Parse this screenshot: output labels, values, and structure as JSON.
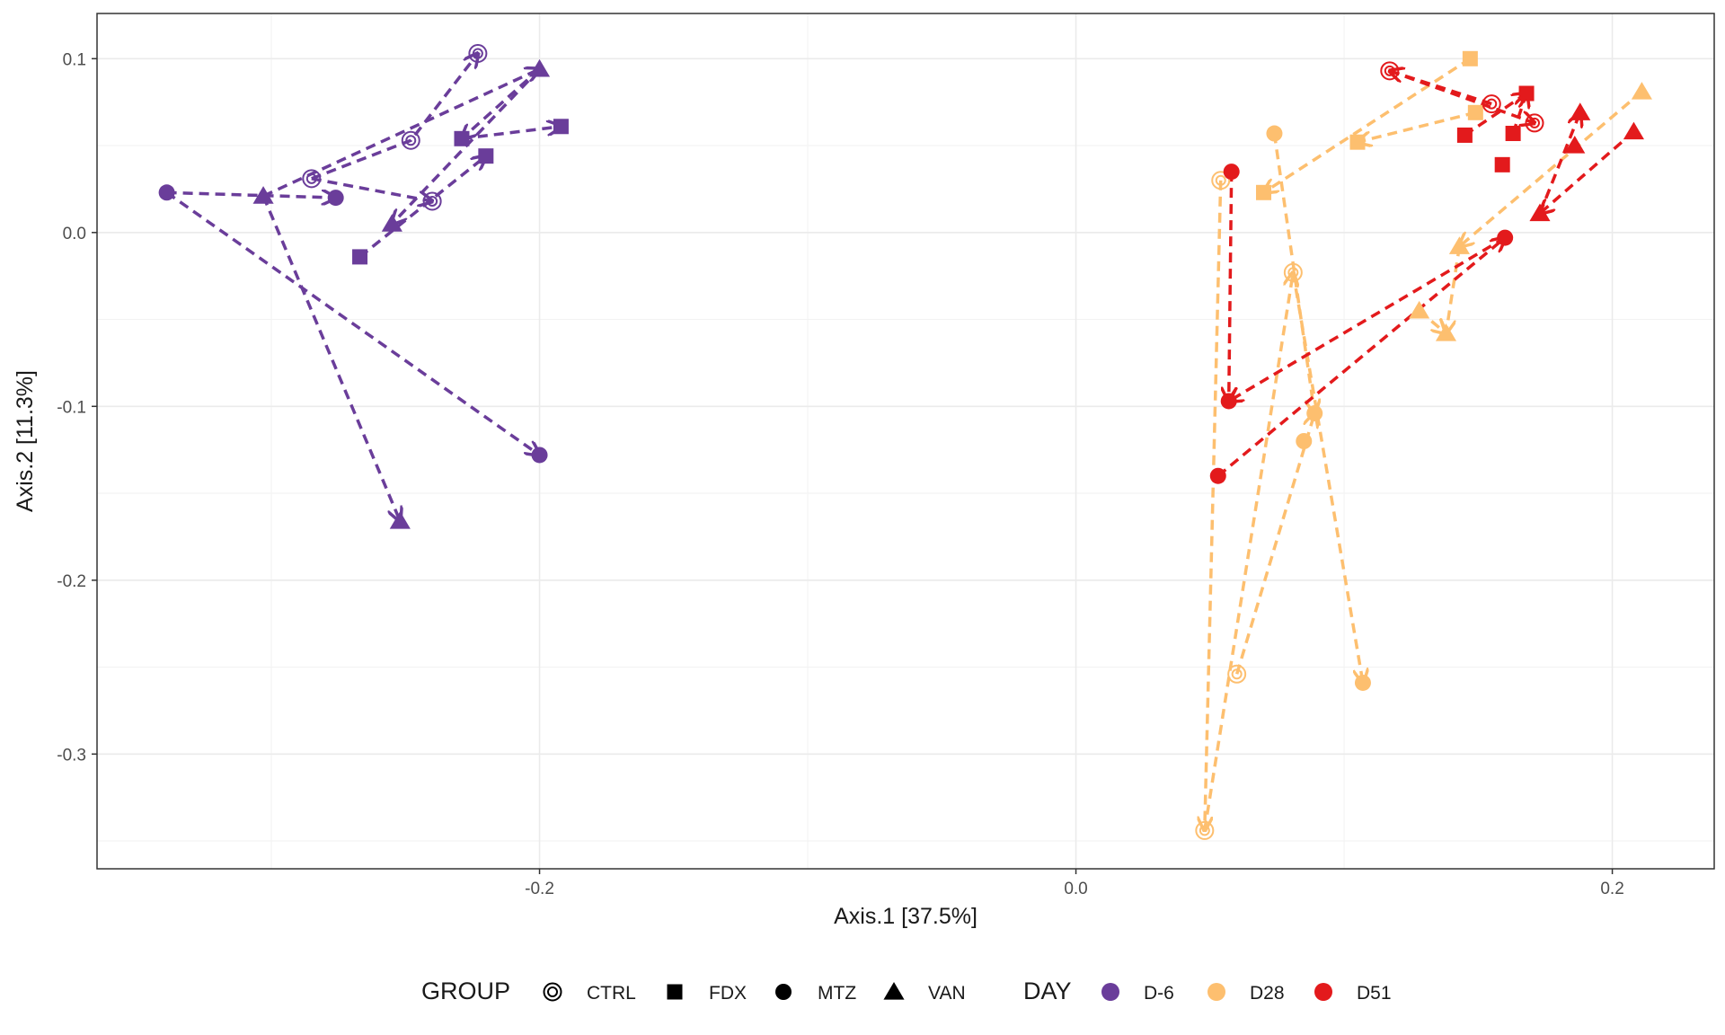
{
  "chart_data": {
    "type": "scatter",
    "title": "",
    "xlabel": "Axis.1   [37.5%]",
    "ylabel": "Axis.2   [11.3%]",
    "xlim": [
      -0.365,
      0.238
    ],
    "ylim": [
      -0.366,
      0.126
    ],
    "xticks": [
      -0.2,
      0.0,
      0.2
    ],
    "xtick_labels": [
      "-0.2",
      "0.0",
      "0.2"
    ],
    "yticks": [
      0.1,
      0.0,
      -0.1,
      -0.2,
      -0.3
    ],
    "ytick_labels": [
      "0.1",
      "0.0",
      "-0.1",
      "-0.2",
      "-0.3"
    ],
    "grid": true,
    "legend_position": "bottom",
    "legend": {
      "group_title": "GROUP",
      "group_items": [
        {
          "label": "CTRL",
          "shape": "ctrl"
        },
        {
          "label": "FDX",
          "shape": "fdx"
        },
        {
          "label": "MTZ",
          "shape": "mtz"
        },
        {
          "label": "VAN",
          "shape": "van"
        }
      ],
      "day_title": "DAY",
      "day_items": [
        {
          "label": "D-6",
          "color": "#6a3d9a"
        },
        {
          "label": "D28",
          "color": "#fdbf6f"
        },
        {
          "label": "D51",
          "color": "#e31a1c"
        }
      ]
    },
    "series": [
      {
        "name": "D-6",
        "color": "#6a3d9a",
        "points": [
          {
            "group": "CTRL",
            "x": -0.223,
            "y": 0.103
          },
          {
            "group": "CTRL",
            "x": -0.248,
            "y": 0.053
          },
          {
            "group": "CTRL",
            "x": -0.285,
            "y": 0.031
          },
          {
            "group": "CTRL",
            "x": -0.24,
            "y": 0.018
          },
          {
            "group": "FDX",
            "x": -0.192,
            "y": 0.061
          },
          {
            "group": "FDX",
            "x": -0.229,
            "y": 0.054
          },
          {
            "group": "FDX",
            "x": -0.22,
            "y": 0.044
          },
          {
            "group": "FDX",
            "x": -0.267,
            "y": -0.014
          },
          {
            "group": "MTZ",
            "x": -0.339,
            "y": 0.023
          },
          {
            "group": "MTZ",
            "x": -0.276,
            "y": 0.02
          },
          {
            "group": "MTZ",
            "x": -0.2,
            "y": -0.128
          },
          {
            "group": "VAN",
            "x": -0.2,
            "y": 0.094
          },
          {
            "group": "VAN",
            "x": -0.303,
            "y": 0.021
          },
          {
            "group": "VAN",
            "x": -0.255,
            "y": 0.005
          },
          {
            "group": "VAN",
            "x": -0.252,
            "y": -0.166
          }
        ]
      },
      {
        "name": "D28",
        "color": "#fdbf6f",
        "points": [
          {
            "group": "CTRL",
            "x": 0.054,
            "y": 0.03
          },
          {
            "group": "CTRL",
            "x": 0.081,
            "y": -0.023
          },
          {
            "group": "CTRL",
            "x": 0.06,
            "y": -0.254
          },
          {
            "group": "CTRL",
            "x": 0.048,
            "y": -0.344
          },
          {
            "group": "FDX",
            "x": 0.147,
            "y": 0.1
          },
          {
            "group": "FDX",
            "x": 0.149,
            "y": 0.069
          },
          {
            "group": "FDX",
            "x": 0.105,
            "y": 0.052
          },
          {
            "group": "FDX",
            "x": 0.07,
            "y": 0.023
          },
          {
            "group": "MTZ",
            "x": 0.074,
            "y": 0.057
          },
          {
            "group": "MTZ",
            "x": 0.089,
            "y": -0.104
          },
          {
            "group": "MTZ",
            "x": 0.085,
            "y": -0.12
          },
          {
            "group": "MTZ",
            "x": 0.107,
            "y": -0.259
          },
          {
            "group": "VAN",
            "x": 0.211,
            "y": 0.081
          },
          {
            "group": "VAN",
            "x": 0.143,
            "y": -0.008
          },
          {
            "group": "VAN",
            "x": 0.128,
            "y": -0.045
          },
          {
            "group": "VAN",
            "x": 0.138,
            "y": -0.058
          }
        ]
      },
      {
        "name": "D51",
        "color": "#e31a1c",
        "points": [
          {
            "group": "CTRL",
            "x": 0.117,
            "y": 0.093
          },
          {
            "group": "CTRL",
            "x": 0.155,
            "y": 0.074
          },
          {
            "group": "CTRL",
            "x": 0.171,
            "y": 0.063
          },
          {
            "group": "FDX",
            "x": 0.168,
            "y": 0.08
          },
          {
            "group": "FDX",
            "x": 0.145,
            "y": 0.056
          },
          {
            "group": "FDX",
            "x": 0.163,
            "y": 0.057
          },
          {
            "group": "FDX",
            "x": 0.159,
            "y": 0.039
          },
          {
            "group": "MTZ",
            "x": 0.058,
            "y": 0.035
          },
          {
            "group": "MTZ",
            "x": 0.16,
            "y": -0.003
          },
          {
            "group": "MTZ",
            "x": 0.057,
            "y": -0.097
          },
          {
            "group": "MTZ",
            "x": 0.053,
            "y": -0.14
          },
          {
            "group": "VAN",
            "x": 0.188,
            "y": 0.069
          },
          {
            "group": "VAN",
            "x": 0.186,
            "y": 0.05
          },
          {
            "group": "VAN",
            "x": 0.208,
            "y": 0.058
          },
          {
            "group": "VAN",
            "x": 0.173,
            "y": 0.011
          }
        ]
      }
    ],
    "trajectories": [
      {
        "color": "#6a3d9a",
        "path": [
          [
            -0.285,
            0.031
          ],
          [
            -0.248,
            0.053
          ],
          [
            -0.223,
            0.103
          ]
        ]
      },
      {
        "color": "#6a3d9a",
        "path": [
          [
            -0.285,
            0.031
          ],
          [
            -0.24,
            0.018
          ]
        ]
      },
      {
        "color": "#6a3d9a",
        "path": [
          [
            -0.267,
            -0.014
          ],
          [
            -0.22,
            0.044
          ]
        ]
      },
      {
        "color": "#6a3d9a",
        "path": [
          [
            -0.229,
            0.054
          ],
          [
            -0.192,
            0.061
          ]
        ]
      },
      {
        "color": "#6a3d9a",
        "path": [
          [
            -0.339,
            0.023
          ],
          [
            -0.276,
            0.02
          ]
        ]
      },
      {
        "color": "#6a3d9a",
        "path": [
          [
            -0.339,
            0.023
          ],
          [
            -0.2,
            -0.128
          ]
        ]
      },
      {
        "color": "#6a3d9a",
        "path": [
          [
            -0.303,
            0.021
          ],
          [
            -0.252,
            -0.166
          ]
        ]
      },
      {
        "color": "#6a3d9a",
        "path": [
          [
            -0.303,
            0.021
          ],
          [
            -0.2,
            0.094
          ]
        ]
      },
      {
        "color": "#6a3d9a",
        "path": [
          [
            -0.2,
            0.094
          ],
          [
            -0.229,
            0.054
          ]
        ]
      },
      {
        "color": "#6a3d9a",
        "path": [
          [
            -0.2,
            0.094
          ],
          [
            -0.255,
            0.005
          ]
        ]
      },
      {
        "color": "#fdbf6f",
        "path": [
          [
            0.054,
            0.03
          ],
          [
            0.048,
            -0.344
          ]
        ]
      },
      {
        "color": "#fdbf6f",
        "path": [
          [
            0.048,
            -0.344
          ],
          [
            0.081,
            -0.023
          ]
        ]
      },
      {
        "color": "#fdbf6f",
        "path": [
          [
            0.081,
            -0.023
          ],
          [
            0.107,
            -0.259
          ]
        ]
      },
      {
        "color": "#fdbf6f",
        "path": [
          [
            0.06,
            -0.254
          ],
          [
            0.089,
            -0.104
          ]
        ]
      },
      {
        "color": "#fdbf6f",
        "path": [
          [
            0.074,
            0.057
          ],
          [
            0.089,
            -0.104
          ]
        ]
      },
      {
        "color": "#fdbf6f",
        "path": [
          [
            0.149,
            0.069
          ],
          [
            0.105,
            0.052
          ]
        ]
      },
      {
        "color": "#fdbf6f",
        "path": [
          [
            0.147,
            0.1
          ],
          [
            0.07,
            0.023
          ]
        ]
      },
      {
        "color": "#fdbf6f",
        "path": [
          [
            0.211,
            0.081
          ],
          [
            0.143,
            -0.008
          ]
        ]
      },
      {
        "color": "#fdbf6f",
        "path": [
          [
            0.143,
            -0.008
          ],
          [
            0.138,
            -0.058
          ]
        ]
      },
      {
        "color": "#fdbf6f",
        "path": [
          [
            0.128,
            -0.045
          ],
          [
            0.138,
            -0.058
          ]
        ]
      },
      {
        "color": "#e31a1c",
        "path": [
          [
            0.117,
            0.093
          ],
          [
            0.171,
            0.063
          ]
        ]
      },
      {
        "color": "#e31a1c",
        "path": [
          [
            0.155,
            0.074
          ],
          [
            0.117,
            0.093
          ]
        ]
      },
      {
        "color": "#e31a1c",
        "path": [
          [
            0.145,
            0.056
          ],
          [
            0.168,
            0.08
          ]
        ]
      },
      {
        "color": "#e31a1c",
        "path": [
          [
            0.163,
            0.057
          ],
          [
            0.168,
            0.08
          ]
        ]
      },
      {
        "color": "#e31a1c",
        "path": [
          [
            0.058,
            0.035
          ],
          [
            0.057,
            -0.097
          ]
        ]
      },
      {
        "color": "#e31a1c",
        "path": [
          [
            0.16,
            -0.003
          ],
          [
            0.057,
            -0.097
          ]
        ]
      },
      {
        "color": "#e31a1c",
        "path": [
          [
            0.053,
            -0.14
          ],
          [
            0.16,
            -0.003
          ]
        ]
      },
      {
        "color": "#e31a1c",
        "path": [
          [
            0.173,
            0.011
          ],
          [
            0.188,
            0.069
          ]
        ]
      },
      {
        "color": "#e31a1c",
        "path": [
          [
            0.208,
            0.058
          ],
          [
            0.173,
            0.011
          ]
        ]
      }
    ]
  }
}
